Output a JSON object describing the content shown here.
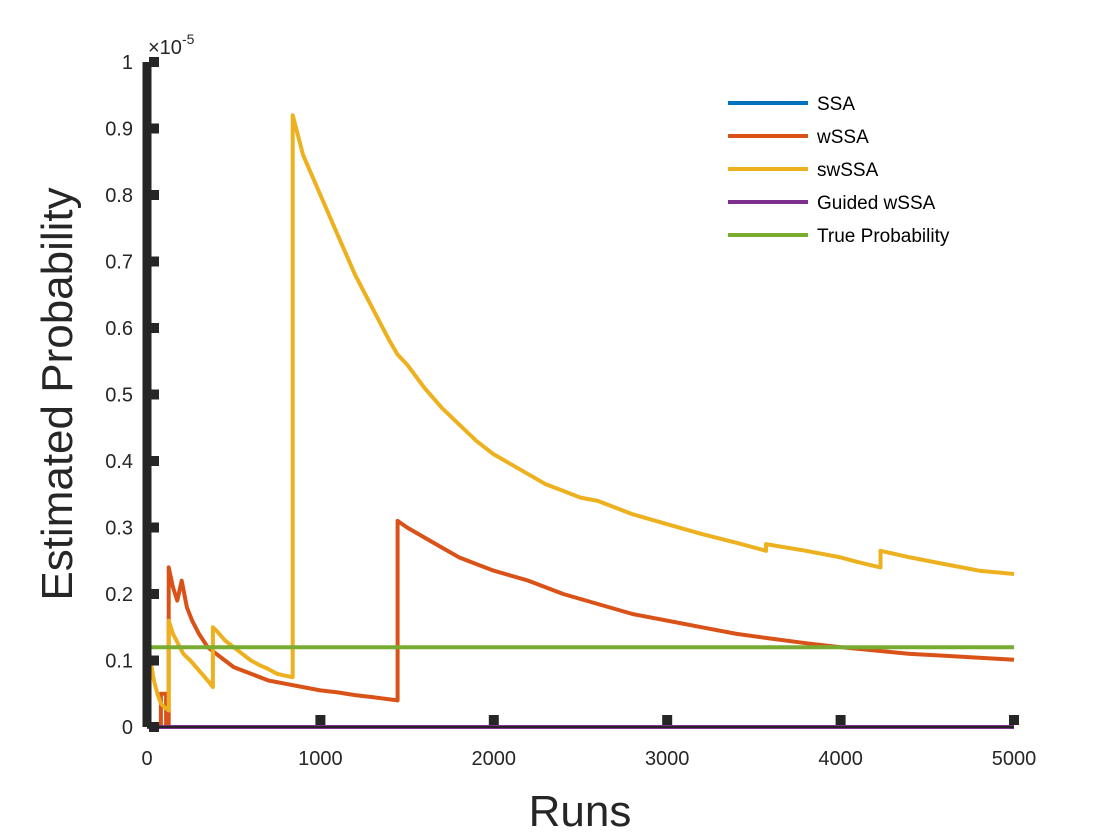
{
  "chart_data": {
    "type": "line",
    "xlabel": "Runs",
    "ylabel": "Estimated Probability",
    "xlim": [
      0,
      5000
    ],
    "ylim": [
      0,
      1
    ],
    "y_multiplier": "×10",
    "y_exponent": "-5",
    "x_ticks": [
      0,
      1000,
      2000,
      3000,
      4000,
      5000
    ],
    "x_tick_labels": [
      "0",
      "1000",
      "2000",
      "3000",
      "4000",
      "5000"
    ],
    "y_ticks": [
      0,
      0.1,
      0.2,
      0.3,
      0.4,
      0.5,
      0.6,
      0.7,
      0.8,
      0.9,
      1
    ],
    "y_tick_labels": [
      "0",
      "0.1",
      "0.2",
      "0.3",
      "0.4",
      "0.5",
      "0.6",
      "0.7",
      "0.8",
      "0.9",
      "1"
    ],
    "grid": false,
    "legend_position": "top-right",
    "series": [
      {
        "name": "SSA",
        "color": "#0072BD",
        "points": [
          [
            0,
            0
          ],
          [
            5000,
            0
          ]
        ]
      },
      {
        "name": "wSSA",
        "color": "#D95319",
        "points": [
          [
            0,
            0
          ],
          [
            80,
            0
          ],
          [
            80,
            0.05
          ],
          [
            110,
            0.05
          ],
          [
            110,
            0
          ],
          [
            125,
            0
          ],
          [
            125,
            0.24
          ],
          [
            150,
            0.21
          ],
          [
            175,
            0.19
          ],
          [
            200,
            0.22
          ],
          [
            230,
            0.18
          ],
          [
            260,
            0.16
          ],
          [
            300,
            0.14
          ],
          [
            350,
            0.12
          ],
          [
            400,
            0.11
          ],
          [
            450,
            0.1
          ],
          [
            500,
            0.09
          ],
          [
            550,
            0.085
          ],
          [
            600,
            0.08
          ],
          [
            700,
            0.07
          ],
          [
            800,
            0.065
          ],
          [
            900,
            0.06
          ],
          [
            1000,
            0.055
          ],
          [
            1100,
            0.052
          ],
          [
            1200,
            0.048
          ],
          [
            1300,
            0.045
          ],
          [
            1445,
            0.04
          ],
          [
            1445,
            0.31
          ],
          [
            1500,
            0.3
          ],
          [
            1600,
            0.285
          ],
          [
            1700,
            0.27
          ],
          [
            1800,
            0.255
          ],
          [
            1900,
            0.245
          ],
          [
            2000,
            0.235
          ],
          [
            2200,
            0.22
          ],
          [
            2400,
            0.2
          ],
          [
            2600,
            0.185
          ],
          [
            2800,
            0.17
          ],
          [
            3000,
            0.16
          ],
          [
            3200,
            0.15
          ],
          [
            3400,
            0.14
          ],
          [
            3600,
            0.133
          ],
          [
            3800,
            0.126
          ],
          [
            4000,
            0.12
          ],
          [
            4200,
            0.115
          ],
          [
            4400,
            0.11
          ],
          [
            4600,
            0.107
          ],
          [
            4800,
            0.104
          ],
          [
            5000,
            0.101
          ]
        ]
      },
      {
        "name": "swSSA",
        "color": "#EDB120",
        "points": [
          [
            0,
            0.135
          ],
          [
            20,
            0.1
          ],
          [
            40,
            0.07
          ],
          [
            60,
            0.05
          ],
          [
            80,
            0.035
          ],
          [
            100,
            0.03
          ],
          [
            125,
            0.025
          ],
          [
            125,
            0.16
          ],
          [
            150,
            0.14
          ],
          [
            180,
            0.125
          ],
          [
            210,
            0.11
          ],
          [
            250,
            0.1
          ],
          [
            300,
            0.085
          ],
          [
            350,
            0.07
          ],
          [
            380,
            0.06
          ],
          [
            380,
            0.15
          ],
          [
            400,
            0.145
          ],
          [
            450,
            0.13
          ],
          [
            500,
            0.12
          ],
          [
            550,
            0.11
          ],
          [
            600,
            0.1
          ],
          [
            650,
            0.093
          ],
          [
            700,
            0.087
          ],
          [
            750,
            0.08
          ],
          [
            800,
            0.077
          ],
          [
            840,
            0.075
          ],
          [
            840,
            0.92
          ],
          [
            900,
            0.86
          ],
          [
            1000,
            0.8
          ],
          [
            1100,
            0.74
          ],
          [
            1200,
            0.68
          ],
          [
            1300,
            0.63
          ],
          [
            1400,
            0.58
          ],
          [
            1445,
            0.56
          ],
          [
            1500,
            0.545
          ],
          [
            1600,
            0.51
          ],
          [
            1700,
            0.48
          ],
          [
            1800,
            0.455
          ],
          [
            1900,
            0.43
          ],
          [
            2000,
            0.41
          ],
          [
            2100,
            0.395
          ],
          [
            2200,
            0.38
          ],
          [
            2300,
            0.365
          ],
          [
            2400,
            0.355
          ],
          [
            2500,
            0.345
          ],
          [
            2600,
            0.34
          ],
          [
            2800,
            0.32
          ],
          [
            3000,
            0.305
          ],
          [
            3200,
            0.29
          ],
          [
            3400,
            0.277
          ],
          [
            3570,
            0.265
          ],
          [
            3570,
            0.275
          ],
          [
            3800,
            0.265
          ],
          [
            4000,
            0.255
          ],
          [
            4100,
            0.248
          ],
          [
            4230,
            0.24
          ],
          [
            4230,
            0.265
          ],
          [
            4400,
            0.255
          ],
          [
            4600,
            0.245
          ],
          [
            4800,
            0.235
          ],
          [
            5000,
            0.23
          ]
        ]
      },
      {
        "name": "Guided wSSA",
        "color": "#7E2F8E",
        "points": [
          [
            0,
            0
          ],
          [
            5000,
            0
          ]
        ]
      },
      {
        "name": "True Probability",
        "color": "#77AC30",
        "points": [
          [
            0,
            0.12
          ],
          [
            5000,
            0.12
          ]
        ]
      }
    ]
  }
}
